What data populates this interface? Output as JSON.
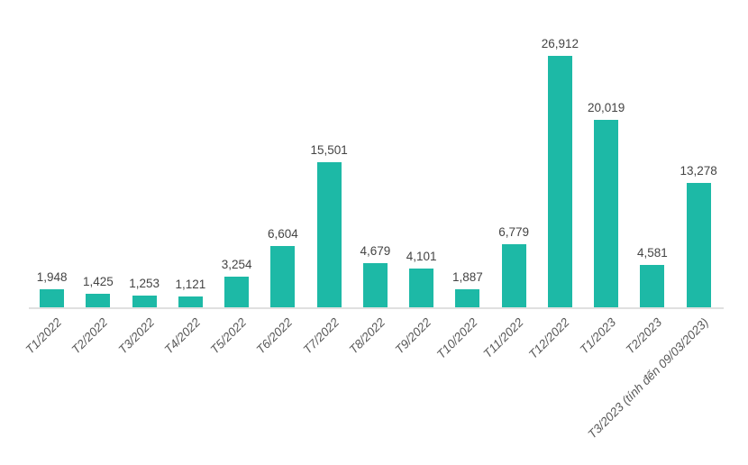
{
  "chart_data": {
    "type": "bar",
    "title": "",
    "xlabel": "",
    "ylabel": "",
    "categories": [
      "T1/2022",
      "T2/2022",
      "T3/2022",
      "T4/2022",
      "T5/2022",
      "T6/2022",
      "T7/2022",
      "T8/2022",
      "T9/2022",
      "T10/2022",
      "T11/2022",
      "T12/2022",
      "T1/2023",
      "T2/2023",
      "T3/2023 (tính đến 09/03/2023)"
    ],
    "values": [
      1948,
      1425,
      1253,
      1121,
      3254,
      6604,
      15501,
      4679,
      4101,
      1887,
      6779,
      26912,
      20019,
      4581,
      13278
    ],
    "value_labels": [
      "1,948",
      "1,425",
      "1,253",
      "1,121",
      "3,254",
      "6,604",
      "15,501",
      "4,679",
      "4,101",
      "1,887",
      "6,779",
      "26,912",
      "20,019",
      "4,581",
      "13,278"
    ],
    "ylim": [
      0,
      28000
    ],
    "grid": false,
    "legend": false,
    "x_tick_rotation": -45,
    "colors": {
      "bar": "#1db9a6",
      "value_label": "#444444",
      "axis_label": "#595959",
      "axis_line": "#e0e0e0",
      "background": "#ffffff"
    }
  }
}
